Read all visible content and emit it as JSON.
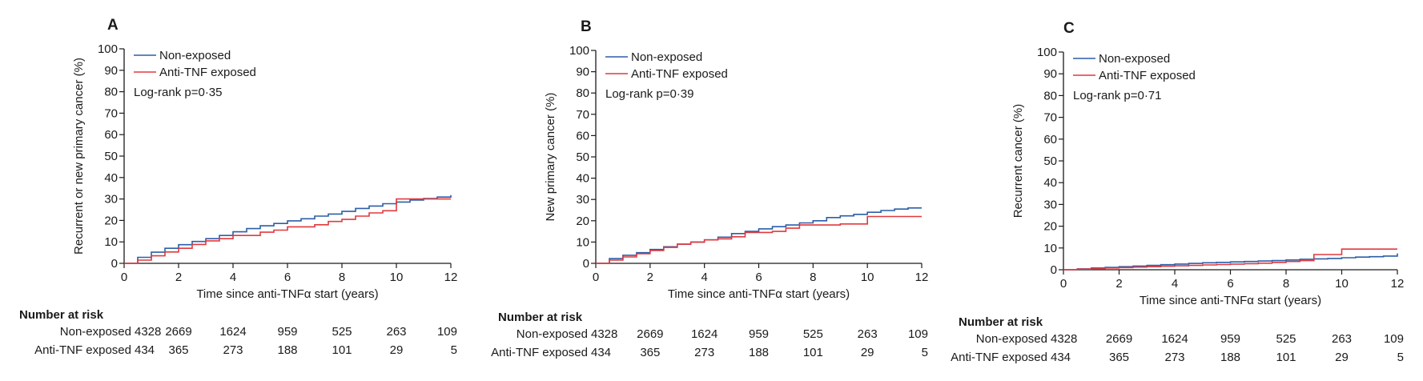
{
  "chart_data": [
    {
      "type": "line",
      "panel_label": "A",
      "xlabel": "Time since anti-TNFα start (years)",
      "ylabel": "Recurrent or new primary cancer (%)",
      "xlim": [
        0,
        12
      ],
      "ylim": [
        0,
        100
      ],
      "x_ticks": [
        "0",
        "2",
        "4",
        "6",
        "8",
        "10",
        "12"
      ],
      "y_ticks": [
        "0",
        "10",
        "20",
        "30",
        "40",
        "50",
        "60",
        "70",
        "80",
        "90",
        "100"
      ],
      "grid": false,
      "legend_position": "top-left",
      "annotation": "Log-rank p=0·35",
      "series": [
        {
          "name": "Non-exposed",
          "color": "#2b5ea7",
          "x": [
            0,
            0.5,
            1,
            1.5,
            2,
            2.5,
            3,
            3.5,
            4,
            4.5,
            5,
            5.5,
            6,
            6.5,
            7,
            7.5,
            8,
            8.5,
            9,
            9.5,
            10,
            10.5,
            11,
            11.5,
            12
          ],
          "y": [
            0,
            2.8,
            5.2,
            7,
            8.7,
            10.2,
            11.5,
            13,
            14.7,
            16.2,
            17.5,
            18.6,
            19.8,
            20.8,
            22,
            23,
            24.2,
            25.6,
            26.7,
            27.8,
            28.6,
            29.5,
            30.2,
            30.9,
            31.8
          ]
        },
        {
          "name": "Anti-TNF exposed",
          "color": "#e0393e",
          "x": [
            0,
            0.5,
            1,
            1.5,
            2,
            2.5,
            3,
            3.5,
            4,
            4.5,
            5,
            5.5,
            6,
            6.5,
            7,
            7.5,
            8,
            8.5,
            9,
            9.5,
            10,
            10.5,
            11,
            11.5,
            12
          ],
          "y": [
            0,
            1.5,
            3.5,
            5.3,
            7,
            8.8,
            10.5,
            11.5,
            13,
            13,
            14.5,
            15.5,
            17,
            17,
            18,
            19.5,
            20.5,
            22,
            23.5,
            24.5,
            30,
            30,
            30,
            30,
            30
          ]
        }
      ],
      "number_at_risk": {
        "title": "Number at risk",
        "times": [
          0,
          2,
          4,
          6,
          8,
          10,
          12
        ],
        "rows": [
          {
            "label": "Non-exposed",
            "values": [
              "4328",
              "2669",
              "1624",
              "959",
              "525",
              "263",
              "109"
            ]
          },
          {
            "label": "Anti-TNF exposed",
            "values": [
              "434",
              "365",
              "273",
              "188",
              "101",
              "29",
              "5"
            ]
          }
        ]
      }
    },
    {
      "type": "line",
      "panel_label": "B",
      "xlabel": "Time since anti-TNFα start (years)",
      "ylabel": "New primary cancer (%)",
      "xlim": [
        0,
        12
      ],
      "ylim": [
        0,
        100
      ],
      "x_ticks": [
        "0",
        "2",
        "4",
        "6",
        "8",
        "10",
        "12"
      ],
      "y_ticks": [
        "0",
        "10",
        "20",
        "30",
        "40",
        "50",
        "60",
        "70",
        "80",
        "90",
        "100"
      ],
      "grid": false,
      "legend_position": "top-left",
      "annotation": "Log-rank p=0·39",
      "series": [
        {
          "name": "Non-exposed",
          "color": "#2b5ea7",
          "x": [
            0,
            0.5,
            1,
            1.5,
            2,
            2.5,
            3,
            3.5,
            4,
            4.5,
            5,
            5.5,
            6,
            6.5,
            7,
            7.5,
            8,
            8.5,
            9,
            9.5,
            10,
            10.5,
            11,
            11.5,
            12
          ],
          "y": [
            0,
            2.2,
            3.8,
            5,
            6.5,
            7.8,
            9,
            10,
            11,
            12.3,
            14,
            15,
            16.2,
            17.2,
            18,
            19,
            20,
            21.5,
            22.3,
            23,
            24,
            24.8,
            25.5,
            26,
            26
          ]
        },
        {
          "name": "Anti-TNF exposed",
          "color": "#e0393e",
          "x": [
            0,
            0.5,
            1,
            1.5,
            2,
            2.5,
            3,
            3.5,
            4,
            4.5,
            5,
            5.5,
            6,
            6.5,
            7,
            7.5,
            8,
            8.5,
            9,
            9.5,
            10,
            10.5,
            11,
            11.5,
            12
          ],
          "y": [
            0,
            1.5,
            3,
            4.5,
            6,
            7.5,
            9,
            10,
            11,
            11.5,
            12.5,
            14.5,
            14.5,
            15,
            16.5,
            18,
            18,
            18,
            18.5,
            18.5,
            22,
            22,
            22,
            22,
            22
          ]
        }
      ],
      "number_at_risk": {
        "title": "Number at risk",
        "times": [
          0,
          2,
          4,
          6,
          8,
          10,
          12
        ],
        "rows": [
          {
            "label": "Non-exposed",
            "values": [
              "4328",
              "2669",
              "1624",
              "959",
              "525",
              "263",
              "109"
            ]
          },
          {
            "label": "Anti-TNF exposed",
            "values": [
              "434",
              "365",
              "273",
              "188",
              "101",
              "29",
              "5"
            ]
          }
        ]
      }
    },
    {
      "type": "line",
      "panel_label": "C",
      "xlabel": "Time since anti-TNFα start (years)",
      "ylabel": "Recurrent cancer (%)",
      "xlim": [
        0,
        12
      ],
      "ylim": [
        0,
        100
      ],
      "x_ticks": [
        "0",
        "2",
        "4",
        "6",
        "8",
        "10",
        "12"
      ],
      "y_ticks": [
        "0",
        "10",
        "20",
        "30",
        "40",
        "50",
        "60",
        "70",
        "80",
        "90",
        "100"
      ],
      "grid": false,
      "legend_position": "top-left",
      "annotation": "Log-rank p=0·71",
      "series": [
        {
          "name": "Non-exposed",
          "color": "#2b5ea7",
          "x": [
            0,
            0.5,
            1,
            1.5,
            2,
            2.5,
            3,
            3.5,
            4,
            4.5,
            5,
            5.5,
            6,
            6.5,
            7,
            7.5,
            8,
            8.5,
            9,
            9.5,
            10,
            10.5,
            11,
            11.5,
            12
          ],
          "y": [
            0,
            0.4,
            0.8,
            1.1,
            1.4,
            1.7,
            2,
            2.3,
            2.6,
            2.9,
            3.2,
            3.4,
            3.6,
            3.8,
            4,
            4.2,
            4.5,
            4.8,
            5,
            5.2,
            5.5,
            5.8,
            6,
            6.3,
            7.5
          ]
        },
        {
          "name": "Anti-TNF exposed",
          "color": "#e0393e",
          "x": [
            0,
            0.5,
            1,
            1.5,
            2,
            2.5,
            3,
            3.5,
            4,
            4.5,
            5,
            5.5,
            6,
            6.5,
            7,
            7.5,
            8,
            8.5,
            9,
            9.5,
            10,
            10.5,
            11,
            11.5,
            12
          ],
          "y": [
            0,
            0.3,
            0.6,
            0.8,
            1,
            1.2,
            1.4,
            1.6,
            1.8,
            2,
            2.2,
            2.4,
            2.6,
            2.8,
            3,
            3.4,
            3.8,
            4.2,
            7,
            7,
            9.5,
            9.5,
            9.5,
            9.5,
            9.5
          ]
        }
      ],
      "number_at_risk": {
        "title": "Number at risk",
        "times": [
          0,
          2,
          4,
          6,
          8,
          10,
          12
        ],
        "rows": [
          {
            "label": "Non-exposed",
            "values": [
              "4328",
              "2669",
              "1624",
              "959",
              "525",
              "263",
              "109"
            ]
          },
          {
            "label": "Anti-TNF exposed",
            "values": [
              "434",
              "365",
              "273",
              "188",
              "101",
              "29",
              "5"
            ]
          }
        ]
      }
    }
  ]
}
